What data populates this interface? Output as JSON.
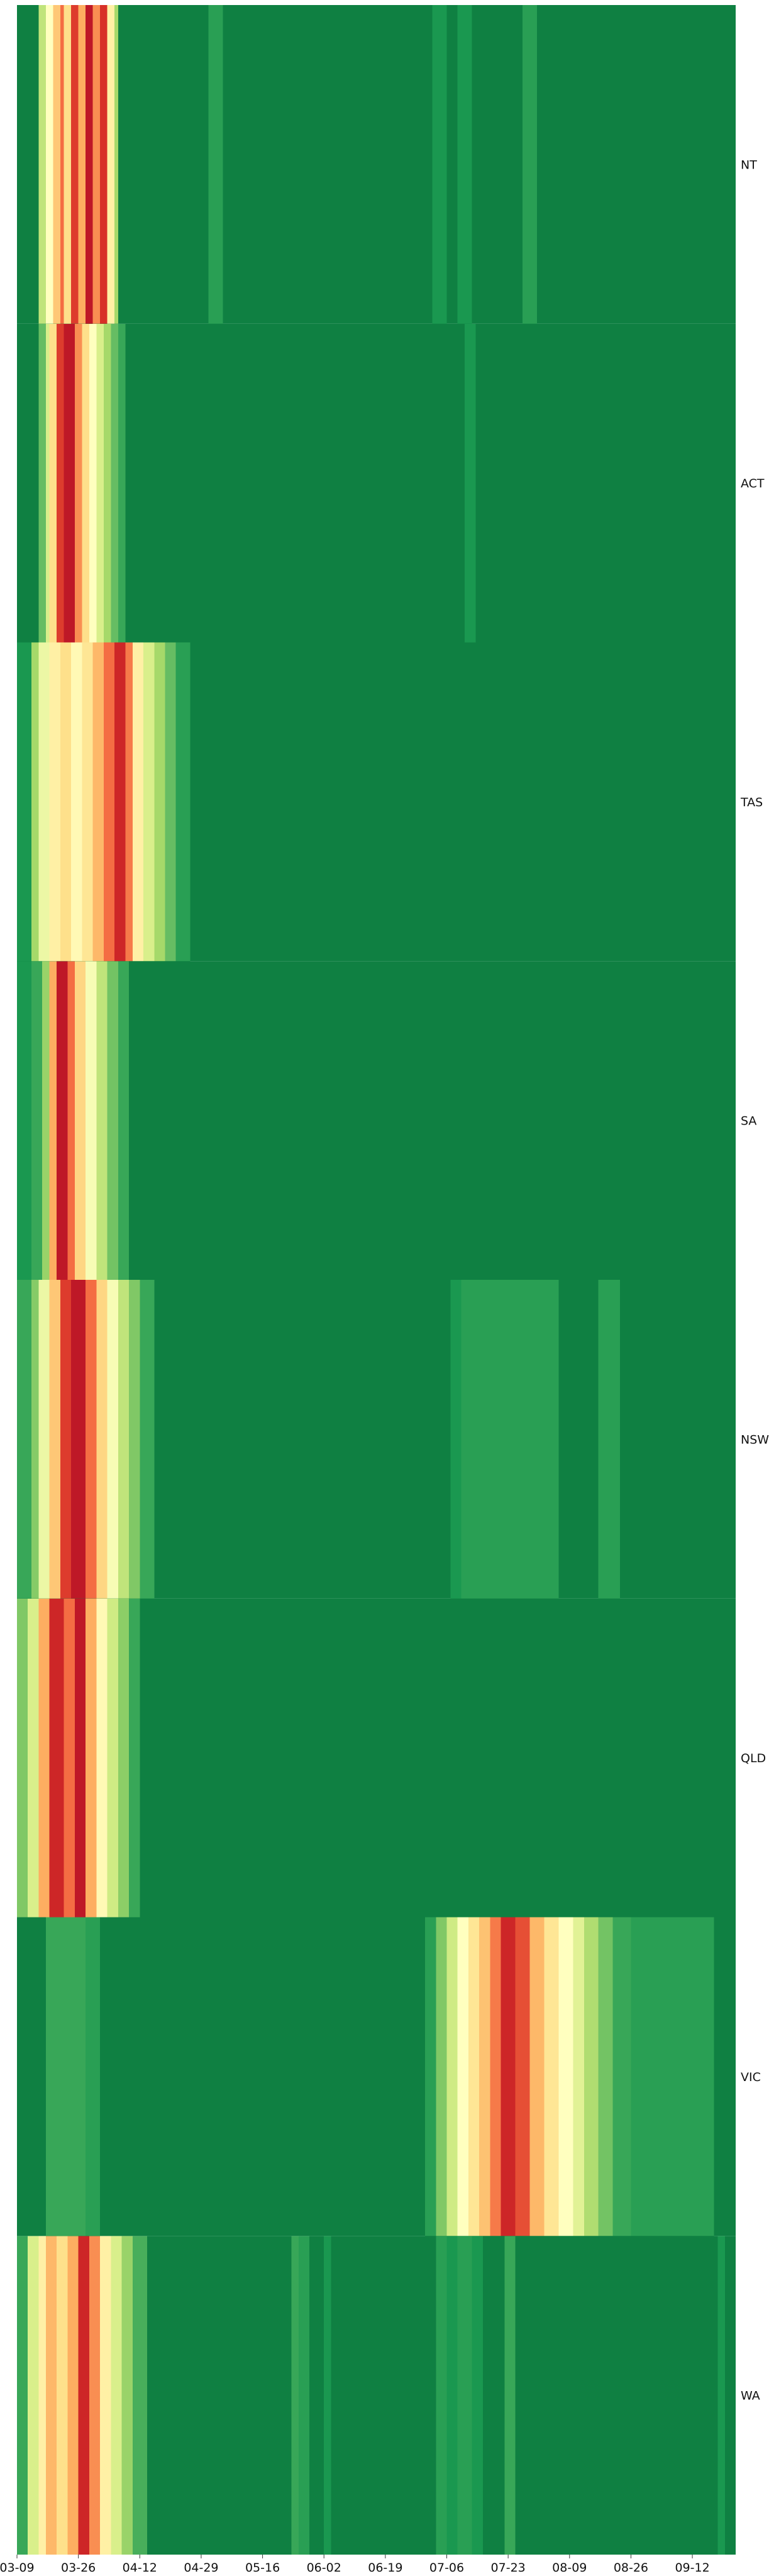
{
  "chart_data": {
    "type": "heatmap",
    "title": "",
    "xlabel": "",
    "ylabel": "",
    "rows": [
      "NT",
      "ACT",
      "TAS",
      "SA",
      "NSW",
      "QLD",
      "VIC",
      "WA"
    ],
    "x_start": "03-09",
    "x_end": "09-24",
    "x_ticks": [
      "03-09",
      "03-26",
      "04-12",
      "04-29",
      "05-16",
      "06-02",
      "06-19",
      "07-06",
      "07-23",
      "08-09",
      "08-26",
      "09-12"
    ],
    "value_range": [
      0,
      1
    ],
    "colormap": "RdYlGn_r",
    "colors": {
      "scale": [
        "#006837",
        "#1a9850",
        "#66bd63",
        "#a6d96a",
        "#d9ef8b",
        "#ffffbf",
        "#fee08b",
        "#fdae61",
        "#f46d43",
        "#d73027",
        "#a50026"
      ],
      "background": "#0f8042"
    },
    "series": [
      {
        "name": "NT",
        "segments": [
          {
            "from": "03-15",
            "to": "03-17",
            "value": 0.35
          },
          {
            "from": "03-17",
            "to": "03-19",
            "value": 0.5
          },
          {
            "from": "03-19",
            "to": "03-21",
            "value": 0.65
          },
          {
            "from": "03-21",
            "to": "03-22",
            "value": 0.8
          },
          {
            "from": "03-22",
            "to": "03-24",
            "value": 0.6
          },
          {
            "from": "03-24",
            "to": "03-26",
            "value": 0.88
          },
          {
            "from": "03-26",
            "to": "03-28",
            "value": 0.7
          },
          {
            "from": "03-28",
            "to": "03-30",
            "value": 0.95
          },
          {
            "from": "03-30",
            "to": "04-01",
            "value": 0.75
          },
          {
            "from": "04-01",
            "to": "04-03",
            "value": 0.9
          },
          {
            "from": "04-03",
            "to": "04-05",
            "value": 0.55
          },
          {
            "from": "04-05",
            "to": "04-06",
            "value": 0.3
          },
          {
            "from": "05-01",
            "to": "05-05",
            "value": 0.12
          },
          {
            "from": "07-02",
            "to": "07-06",
            "value": 0.1
          },
          {
            "from": "07-09",
            "to": "07-13",
            "value": 0.1
          },
          {
            "from": "07-27",
            "to": "07-31",
            "value": 0.12
          }
        ]
      },
      {
        "name": "ACT",
        "segments": [
          {
            "from": "03-15",
            "to": "03-17",
            "value": 0.2
          },
          {
            "from": "03-17",
            "to": "03-18",
            "value": 0.4
          },
          {
            "from": "03-18",
            "to": "03-20",
            "value": 0.6
          },
          {
            "from": "03-20",
            "to": "03-22",
            "value": 0.88
          },
          {
            "from": "03-22",
            "to": "03-25",
            "value": 0.95
          },
          {
            "from": "03-25",
            "to": "03-27",
            "value": 0.75
          },
          {
            "from": "03-27",
            "to": "03-29",
            "value": 0.6
          },
          {
            "from": "03-29",
            "to": "03-31",
            "value": 0.5
          },
          {
            "from": "03-31",
            "to": "04-02",
            "value": 0.4
          },
          {
            "from": "04-02",
            "to": "04-04",
            "value": 0.3
          },
          {
            "from": "04-04",
            "to": "04-06",
            "value": 0.2
          },
          {
            "from": "04-06",
            "to": "04-08",
            "value": 0.14
          },
          {
            "from": "07-11",
            "to": "07-14",
            "value": 0.1
          }
        ]
      },
      {
        "name": "TAS",
        "segments": [
          {
            "from": "03-09",
            "to": "03-13",
            "value": 0.1
          },
          {
            "from": "03-13",
            "to": "03-15",
            "value": 0.3
          },
          {
            "from": "03-15",
            "to": "03-18",
            "value": 0.45
          },
          {
            "from": "03-18",
            "to": "03-21",
            "value": 0.55
          },
          {
            "from": "03-21",
            "to": "03-24",
            "value": 0.6
          },
          {
            "from": "03-24",
            "to": "03-27",
            "value": 0.52
          },
          {
            "from": "03-27",
            "to": "03-30",
            "value": 0.58
          },
          {
            "from": "03-30",
            "to": "04-02",
            "value": 0.68
          },
          {
            "from": "04-02",
            "to": "04-05",
            "value": 0.8
          },
          {
            "from": "04-05",
            "to": "04-08",
            "value": 0.92
          },
          {
            "from": "04-08",
            "to": "04-10",
            "value": 0.78
          },
          {
            "from": "04-10",
            "to": "04-13",
            "value": 0.55
          },
          {
            "from": "04-13",
            "to": "04-16",
            "value": 0.4
          },
          {
            "from": "04-16",
            "to": "04-19",
            "value": 0.3
          },
          {
            "from": "04-19",
            "to": "04-22",
            "value": 0.2
          },
          {
            "from": "04-22",
            "to": "04-26",
            "value": 0.12
          }
        ]
      },
      {
        "name": "SA",
        "segments": [
          {
            "from": "03-09",
            "to": "03-13",
            "value": 0.1
          },
          {
            "from": "03-13",
            "to": "03-16",
            "value": 0.14
          },
          {
            "from": "03-16",
            "to": "03-18",
            "value": 0.28
          },
          {
            "from": "03-18",
            "to": "03-20",
            "value": 0.7
          },
          {
            "from": "03-20",
            "to": "03-23",
            "value": 0.95
          },
          {
            "from": "03-23",
            "to": "03-25",
            "value": 0.8
          },
          {
            "from": "03-25",
            "to": "03-28",
            "value": 0.62
          },
          {
            "from": "03-28",
            "to": "03-31",
            "value": 0.48
          },
          {
            "from": "03-31",
            "to": "04-03",
            "value": 0.35
          },
          {
            "from": "04-03",
            "to": "04-06",
            "value": 0.22
          },
          {
            "from": "04-06",
            "to": "04-09",
            "value": 0.14
          }
        ]
      },
      {
        "name": "NSW",
        "segments": [
          {
            "from": "03-09",
            "to": "03-13",
            "value": 0.14
          },
          {
            "from": "03-13",
            "to": "03-15",
            "value": 0.25
          },
          {
            "from": "03-15",
            "to": "03-18",
            "value": 0.45
          },
          {
            "from": "03-18",
            "to": "03-21",
            "value": 0.65
          },
          {
            "from": "03-21",
            "to": "03-24",
            "value": 0.88
          },
          {
            "from": "03-24",
            "to": "03-28",
            "value": 0.95
          },
          {
            "from": "03-28",
            "to": "03-31",
            "value": 0.8
          },
          {
            "from": "03-31",
            "to": "04-03",
            "value": 0.62
          },
          {
            "from": "04-03",
            "to": "04-06",
            "value": 0.48
          },
          {
            "from": "04-06",
            "to": "04-09",
            "value": 0.35
          },
          {
            "from": "04-09",
            "to": "04-12",
            "value": 0.24
          },
          {
            "from": "04-12",
            "to": "04-16",
            "value": 0.14
          },
          {
            "from": "07-07",
            "to": "07-10",
            "value": 0.1
          },
          {
            "from": "07-10",
            "to": "08-06",
            "value": 0.12
          },
          {
            "from": "08-17",
            "to": "08-23",
            "value": 0.12
          }
        ]
      },
      {
        "name": "QLD",
        "segments": [
          {
            "from": "03-09",
            "to": "03-12",
            "value": 0.24
          },
          {
            "from": "03-12",
            "to": "03-15",
            "value": 0.4
          },
          {
            "from": "03-15",
            "to": "03-18",
            "value": 0.7
          },
          {
            "from": "03-18",
            "to": "03-22",
            "value": 0.92
          },
          {
            "from": "03-22",
            "to": "03-25",
            "value": 0.8
          },
          {
            "from": "03-25",
            "to": "03-28",
            "value": 0.95
          },
          {
            "from": "03-28",
            "to": "03-31",
            "value": 0.7
          },
          {
            "from": "03-31",
            "to": "04-03",
            "value": 0.52
          },
          {
            "from": "04-03",
            "to": "04-06",
            "value": 0.38
          },
          {
            "from": "04-06",
            "to": "04-09",
            "value": 0.26
          },
          {
            "from": "04-09",
            "to": "04-12",
            "value": 0.14
          }
        ]
      },
      {
        "name": "VIC",
        "segments": [
          {
            "from": "03-17",
            "to": "03-28",
            "value": 0.14
          },
          {
            "from": "03-28",
            "to": "04-01",
            "value": 0.12
          },
          {
            "from": "06-30",
            "to": "07-03",
            "value": 0.12
          },
          {
            "from": "07-03",
            "to": "07-06",
            "value": 0.24
          },
          {
            "from": "07-06",
            "to": "07-09",
            "value": 0.38
          },
          {
            "from": "07-09",
            "to": "07-12",
            "value": 0.5
          },
          {
            "from": "07-12",
            "to": "07-15",
            "value": 0.58
          },
          {
            "from": "07-15",
            "to": "07-18",
            "value": 0.66
          },
          {
            "from": "07-18",
            "to": "07-21",
            "value": 0.78
          },
          {
            "from": "07-21",
            "to": "07-25",
            "value": 0.92
          },
          {
            "from": "07-25",
            "to": "07-29",
            "value": 0.85
          },
          {
            "from": "07-29",
            "to": "08-02",
            "value": 0.68
          },
          {
            "from": "08-02",
            "to": "08-06",
            "value": 0.58
          },
          {
            "from": "08-06",
            "to": "08-10",
            "value": 0.5
          },
          {
            "from": "08-10",
            "to": "08-13",
            "value": 0.42
          },
          {
            "from": "08-13",
            "to": "08-17",
            "value": 0.32
          },
          {
            "from": "08-17",
            "to": "08-21",
            "value": 0.22
          },
          {
            "from": "08-21",
            "to": "08-26",
            "value": 0.14
          },
          {
            "from": "08-26",
            "to": "09-18",
            "value": 0.12
          }
        ]
      },
      {
        "name": "WA",
        "segments": [
          {
            "from": "03-09",
            "to": "03-12",
            "value": 0.14
          },
          {
            "from": "03-12",
            "to": "03-15",
            "value": 0.4
          },
          {
            "from": "03-15",
            "to": "03-17",
            "value": 0.55
          },
          {
            "from": "03-17",
            "to": "03-20",
            "value": 0.68
          },
          {
            "from": "03-20",
            "to": "03-23",
            "value": 0.6
          },
          {
            "from": "03-23",
            "to": "03-26",
            "value": 0.7
          },
          {
            "from": "03-26",
            "to": "03-29",
            "value": 0.92
          },
          {
            "from": "03-29",
            "to": "04-01",
            "value": 0.75
          },
          {
            "from": "04-01",
            "to": "04-04",
            "value": 0.55
          },
          {
            "from": "04-04",
            "to": "04-07",
            "value": 0.4
          },
          {
            "from": "04-07",
            "to": "04-10",
            "value": 0.28
          },
          {
            "from": "04-10",
            "to": "04-14",
            "value": 0.16
          },
          {
            "from": "05-24",
            "to": "05-26",
            "value": 0.14
          },
          {
            "from": "05-26",
            "to": "05-29",
            "value": 0.12
          },
          {
            "from": "06-02",
            "to": "06-04",
            "value": 0.1
          },
          {
            "from": "07-03",
            "to": "07-06",
            "value": 0.12
          },
          {
            "from": "07-06",
            "to": "07-09",
            "value": 0.1
          },
          {
            "from": "07-09",
            "to": "07-13",
            "value": 0.12
          },
          {
            "from": "07-13",
            "to": "07-16",
            "value": 0.1
          },
          {
            "from": "07-22",
            "to": "07-25",
            "value": 0.14
          },
          {
            "from": "09-19",
            "to": "09-21",
            "value": 0.1
          }
        ]
      }
    ]
  }
}
